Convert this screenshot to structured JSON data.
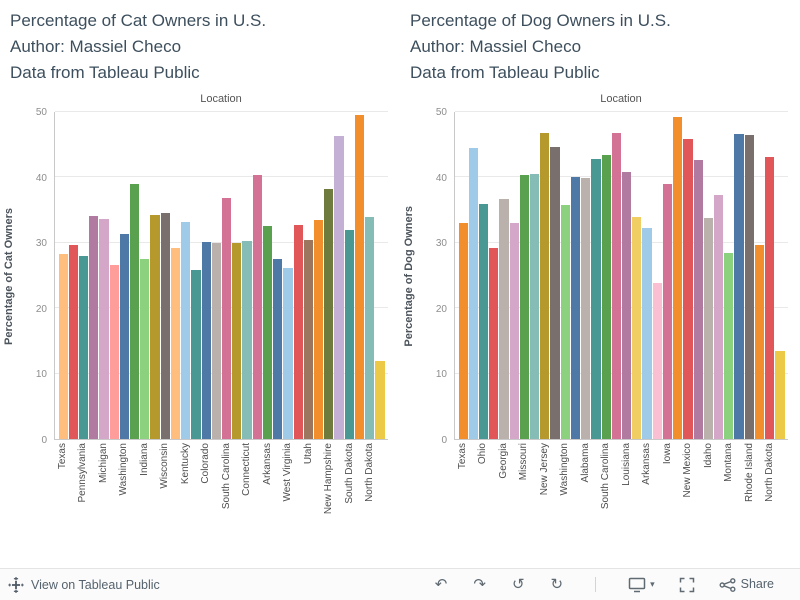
{
  "colors": {
    "title_text": "#3d4f5d",
    "axis_title_text": "#4c545c",
    "tick_text": "#8d8d8d",
    "x_label_text": "#4e4e4e",
    "gridline": "#e9e9e9",
    "axis_line": "#c9c9c9",
    "toolbar_text": "#55626d",
    "toolbar_icon": "#5f6a72",
    "toolbar_bg": "#fbfbfb"
  },
  "chart_data": [
    {
      "type": "bar",
      "title": "Percentage of Cat Owners in U.S.",
      "author_line": "Author: Massiel Checo",
      "source_line": "Data from Tableau Public",
      "column_header": "Location",
      "ylabel": "Percentage of Cat Owners",
      "ylim": [
        0,
        50
      ],
      "yticks": [
        0,
        10,
        20,
        30,
        40,
        50
      ],
      "categories": [
        "Texas",
        "",
        "Pennsylvania",
        "",
        "Michigan",
        "",
        "Washington",
        "",
        "Indiana",
        "",
        "Wisconsin",
        "",
        "Kentucky",
        "",
        "Colorado",
        "",
        "South Carolina",
        "",
        "Connecticut",
        "",
        "Arkansas",
        "",
        "West Virginia",
        "",
        "Utah",
        "",
        "New Hampshire",
        "",
        "South Dakota",
        "",
        "North Dakota",
        ""
      ],
      "values": [
        28.3,
        29.6,
        28.0,
        34.1,
        33.6,
        26.6,
        31.4,
        39.0,
        27.5,
        34.3,
        34.6,
        29.2,
        33.2,
        25.8,
        30.1,
        30.0,
        36.8,
        29.9,
        30.3,
        40.3,
        32.5,
        27.6,
        26.2,
        32.7,
        30.4,
        33.5,
        38.2,
        46.4,
        32.0,
        49.5,
        34.0,
        12.0
      ],
      "colors": [
        "#FFBE7D",
        "#E15759",
        "#499894",
        "#B07AA1",
        "#D4A6C8",
        "#FF9D9A",
        "#4E79A7",
        "#59A14F",
        "#8CD17D",
        "#B6992D",
        "#79706E",
        "#FFBE7D",
        "#A0CBE8",
        "#499894",
        "#4E79A7",
        "#BAB0AC",
        "#D37295",
        "#B6992D",
        "#86BCB6",
        "#D37295",
        "#59A14F",
        "#4E79A7",
        "#A0CBE8",
        "#E15759",
        "#9D7660",
        "#F28E2B",
        "#6E7B3C",
        "#C5B0D5",
        "#499894",
        "#F28E2B",
        "#86BCB6",
        "#EDC948"
      ]
    },
    {
      "type": "bar",
      "title": "Percentage of Dog Owners in U.S.",
      "author_line": "Author: Massiel Checo",
      "source_line": "Data from Tableau Public",
      "column_header": "Location",
      "ylabel": "Percentage of Dog Owners",
      "ylim": [
        0,
        50
      ],
      "yticks": [
        0,
        10,
        20,
        30,
        40,
        50
      ],
      "categories": [
        "Texas",
        "",
        "Ohio",
        "",
        "Georgia",
        "",
        "Missouri",
        "",
        "New Jersey",
        "",
        "Washington",
        "",
        "Alabama",
        "",
        "South Carolina",
        "",
        "Louisiana",
        "",
        "Arkansas",
        "",
        "Iowa",
        "",
        "New Mexico",
        "",
        "Idaho",
        "",
        "Montana",
        "",
        "Rhode Island",
        "",
        "North Dakota",
        ""
      ],
      "values": [
        33.0,
        44.5,
        36.0,
        29.2,
        36.7,
        33.0,
        40.3,
        40.5,
        46.8,
        44.6,
        35.8,
        40.0,
        39.9,
        42.8,
        43.5,
        46.8,
        40.8,
        34.0,
        32.2,
        23.8,
        39.0,
        49.2,
        45.9,
        42.6,
        33.8,
        37.3,
        28.4,
        46.7,
        46.5,
        29.6,
        43.1,
        13.4
      ],
      "colors": [
        "#F28E2B",
        "#A0CBE8",
        "#499894",
        "#E15759",
        "#BAB0AC",
        "#D4A6C8",
        "#59A14F",
        "#86BCB6",
        "#B6992D",
        "#79706E",
        "#8CD17D",
        "#4E79A7",
        "#BAB0AC",
        "#499894",
        "#59A14F",
        "#D37295",
        "#B07AA1",
        "#F1CE63",
        "#A0CBE8",
        "#FABFD2",
        "#D37295",
        "#F28E2B",
        "#E15759",
        "#B07AA1",
        "#BAB0AC",
        "#D4A6C8",
        "#8CD17D",
        "#4E79A7",
        "#79706E",
        "#F28E2B",
        "#E15759",
        "#EDC948"
      ]
    }
  ],
  "toolbar": {
    "view_link_label": "View on Tableau Public",
    "share_label": "Share",
    "undo_glyph": "↶",
    "redo_glyph": "↷",
    "revert_glyph": "↺",
    "refresh_glyph": "↻",
    "caret_glyph": "▾"
  }
}
